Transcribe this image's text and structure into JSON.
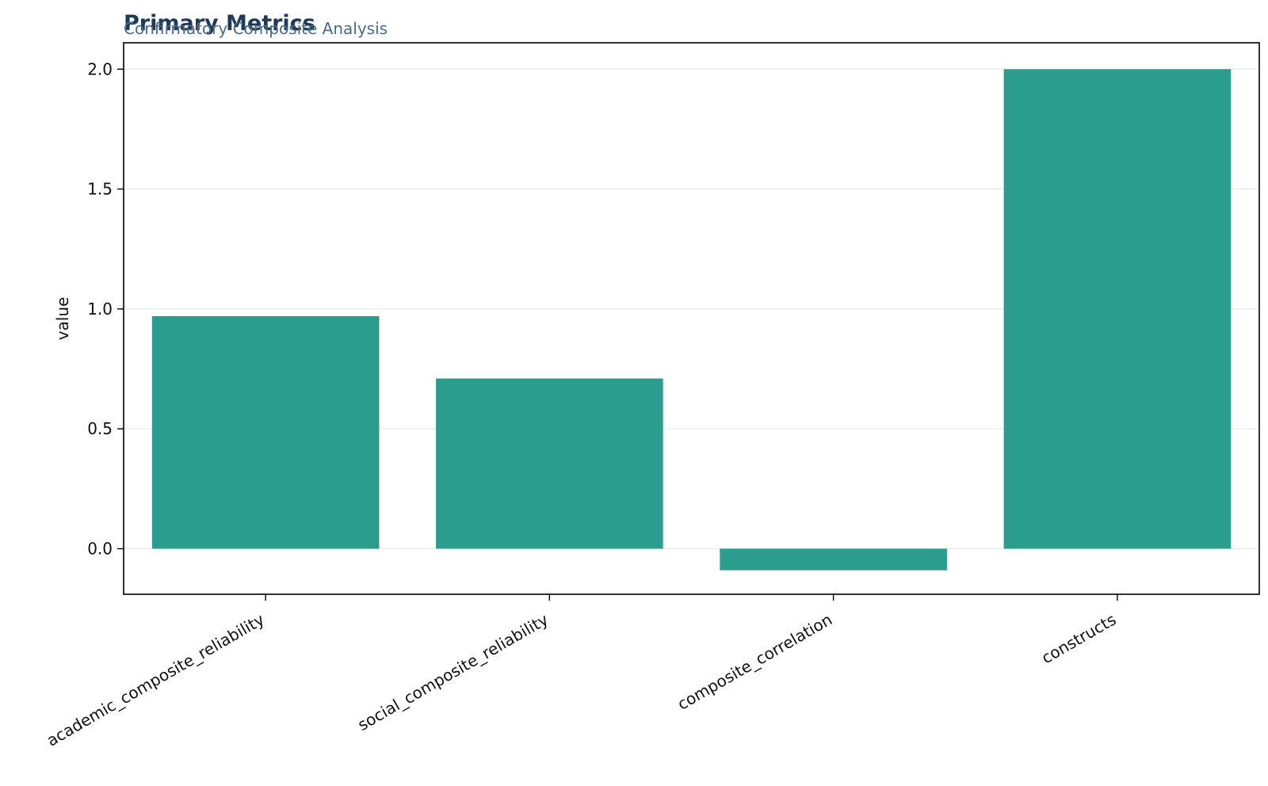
{
  "chart_data": {
    "type": "bar",
    "title": "Primary Metrics",
    "subtitle": "Confirmatory Composite Analysis",
    "xlabel": "",
    "ylabel": "value",
    "categories": [
      "academic_composite_reliability",
      "social_composite_reliability",
      "composite_correlation",
      "constructs"
    ],
    "values": [
      0.97,
      0.71,
      -0.09,
      2.0
    ],
    "ylim": [
      -0.19,
      2.11
    ],
    "yticks": [
      0.0,
      0.5,
      1.0,
      1.5,
      2.0
    ],
    "ytick_labels": [
      "0.0",
      "0.5",
      "1.0",
      "1.5",
      "2.0"
    ],
    "bar_color": "#2a9d8f",
    "grid": "horizontal"
  }
}
